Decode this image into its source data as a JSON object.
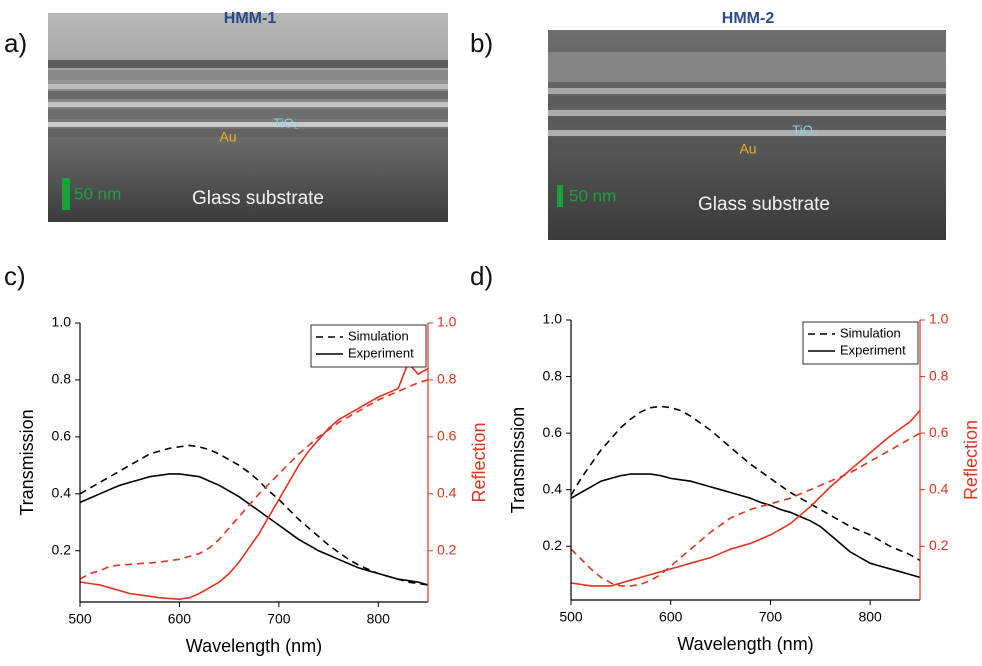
{
  "images": [
    {
      "panel": "a)",
      "title": "HMM-1",
      "metal": "Au",
      "dielectric": "TiO₂",
      "scale_bar": "50 nm",
      "substrate": "Glass substrate"
    },
    {
      "panel": "b)",
      "title": "HMM-2",
      "metal": "Au",
      "dielectric": "TiO₂",
      "scale_bar": "50 nm",
      "substrate": "Glass substrate"
    }
  ],
  "chart_data": [
    {
      "type": "line",
      "panel": "c)",
      "xlabel": "Wavelength (nm)",
      "ylabel": "Transmission",
      "y2label": "Reflection",
      "x": [
        500,
        510,
        520,
        530,
        540,
        550,
        560,
        570,
        580,
        590,
        600,
        610,
        620,
        630,
        640,
        650,
        660,
        670,
        680,
        690,
        700,
        710,
        720,
        730,
        740,
        750,
        760,
        770,
        780,
        790,
        800,
        810,
        820,
        830,
        840,
        850
      ],
      "xlim": [
        500,
        850
      ],
      "xticks": [
        500,
        600,
        700,
        800
      ],
      "ylim": [
        0.02,
        1.0
      ],
      "yticks": [
        0.2,
        0.4,
        0.6,
        0.8,
        {
          "value": 1.0,
          "label": "1.0"
        }
      ],
      "y2lim": [
        0.02,
        1.0
      ],
      "y2ticks": [
        0.2,
        0.4,
        0.6,
        0.8,
        {
          "value": 1.0,
          "label": "1.0"
        }
      ],
      "legend": "upper right",
      "y2color": "#e5331f",
      "series": [
        {
          "name": "Simulation",
          "color": "#000000",
          "linestyle": "dashed",
          "values": [
            0.4,
            0.42,
            0.44,
            0.46,
            0.48,
            0.5,
            0.52,
            0.54,
            0.55,
            0.56,
            0.565,
            0.57,
            0.565,
            0.555,
            0.54,
            0.52,
            0.5,
            0.475,
            0.445,
            0.41,
            0.38,
            0.345,
            0.31,
            0.28,
            0.25,
            0.22,
            0.195,
            0.17,
            0.15,
            0.135,
            0.12,
            0.11,
            0.1,
            0.09,
            0.085,
            0.08
          ]
        },
        {
          "name": "Experiment",
          "color": "#000000",
          "linestyle": "solid",
          "values": [
            0.37,
            0.385,
            0.4,
            0.415,
            0.43,
            0.44,
            0.45,
            0.46,
            0.465,
            0.47,
            0.47,
            0.465,
            0.46,
            0.445,
            0.43,
            0.41,
            0.39,
            0.365,
            0.34,
            0.315,
            0.29,
            0.265,
            0.24,
            0.22,
            0.2,
            0.185,
            0.17,
            0.155,
            0.14,
            0.13,
            0.12,
            0.11,
            0.1,
            0.095,
            0.09,
            0.08
          ]
        },
        {
          "color": "#e5331f",
          "linestyle": "dashed",
          "axis": "y2",
          "values": [
            0.1,
            0.12,
            0.13,
            0.145,
            0.15,
            0.152,
            0.155,
            0.157,
            0.16,
            0.165,
            0.17,
            0.18,
            0.19,
            0.21,
            0.24,
            0.28,
            0.32,
            0.36,
            0.4,
            0.435,
            0.47,
            0.505,
            0.54,
            0.57,
            0.6,
            0.625,
            0.65,
            0.67,
            0.69,
            0.71,
            0.73,
            0.745,
            0.76,
            0.775,
            0.79,
            0.8
          ]
        },
        {
          "color": "#e5331f",
          "linestyle": "solid",
          "axis": "y2",
          "values": [
            0.09,
            0.085,
            0.08,
            0.07,
            0.06,
            0.05,
            0.045,
            0.04,
            0.035,
            0.032,
            0.03,
            0.035,
            0.05,
            0.07,
            0.09,
            0.12,
            0.16,
            0.21,
            0.26,
            0.32,
            0.38,
            0.44,
            0.5,
            0.55,
            0.59,
            0.63,
            0.66,
            0.68,
            0.7,
            0.72,
            0.74,
            0.755,
            0.77,
            0.86,
            0.82,
            0.84
          ]
        }
      ]
    },
    {
      "type": "line",
      "panel": "d)",
      "xlabel": "Wavelength (nm)",
      "ylabel": "Transmission",
      "y2label": "Reflection",
      "x": [
        500,
        510,
        520,
        530,
        540,
        550,
        560,
        570,
        580,
        590,
        600,
        610,
        620,
        630,
        640,
        650,
        660,
        670,
        680,
        690,
        700,
        710,
        720,
        730,
        740,
        750,
        760,
        770,
        780,
        790,
        800,
        810,
        820,
        830,
        840,
        850
      ],
      "xlim": [
        500,
        850
      ],
      "xticks": [
        500,
        600,
        700,
        800
      ],
      "ylim": [
        0.01,
        1.0
      ],
      "yticks": [
        0.2,
        0.4,
        0.6,
        0.8,
        {
          "value": 1.0,
          "label": "1.0"
        }
      ],
      "y2lim": [
        0.01,
        1.0
      ],
      "y2ticks": [
        0.2,
        0.4,
        0.6,
        0.8,
        {
          "value": 1.0,
          "label": "1.0"
        }
      ],
      "legend": "upper right",
      "y2color": "#e5331f",
      "series": [
        {
          "name": "Simulation",
          "color": "#000000",
          "linestyle": "dashed",
          "values": [
            0.38,
            0.44,
            0.49,
            0.54,
            0.58,
            0.62,
            0.65,
            0.675,
            0.69,
            0.695,
            0.69,
            0.68,
            0.66,
            0.635,
            0.61,
            0.58,
            0.55,
            0.52,
            0.49,
            0.465,
            0.44,
            0.415,
            0.39,
            0.37,
            0.35,
            0.33,
            0.31,
            0.29,
            0.27,
            0.255,
            0.24,
            0.22,
            0.2,
            0.185,
            0.17,
            0.15
          ]
        },
        {
          "name": "Experiment",
          "color": "#000000",
          "linestyle": "solid",
          "values": [
            0.37,
            0.39,
            0.41,
            0.43,
            0.44,
            0.45,
            0.455,
            0.455,
            0.455,
            0.45,
            0.44,
            0.435,
            0.43,
            0.42,
            0.41,
            0.4,
            0.39,
            0.38,
            0.37,
            0.355,
            0.345,
            0.33,
            0.32,
            0.305,
            0.29,
            0.27,
            0.24,
            0.21,
            0.18,
            0.16,
            0.14,
            0.13,
            0.12,
            0.11,
            0.1,
            0.09
          ]
        },
        {
          "color": "#e5331f",
          "linestyle": "dashed",
          "axis": "y2",
          "values": [
            0.19,
            0.155,
            0.12,
            0.09,
            0.07,
            0.06,
            0.06,
            0.065,
            0.08,
            0.1,
            0.13,
            0.16,
            0.19,
            0.22,
            0.25,
            0.275,
            0.3,
            0.315,
            0.33,
            0.34,
            0.35,
            0.36,
            0.37,
            0.385,
            0.4,
            0.415,
            0.43,
            0.445,
            0.46,
            0.48,
            0.5,
            0.52,
            0.54,
            0.56,
            0.58,
            0.6
          ]
        },
        {
          "color": "#e5331f",
          "linestyle": "solid",
          "axis": "y2",
          "values": [
            0.07,
            0.065,
            0.06,
            0.06,
            0.06,
            0.07,
            0.08,
            0.09,
            0.1,
            0.11,
            0.12,
            0.13,
            0.14,
            0.15,
            0.16,
            0.175,
            0.19,
            0.2,
            0.21,
            0.225,
            0.24,
            0.26,
            0.28,
            0.31,
            0.34,
            0.375,
            0.41,
            0.44,
            0.47,
            0.5,
            0.53,
            0.56,
            0.59,
            0.615,
            0.64,
            0.68
          ]
        }
      ]
    }
  ]
}
